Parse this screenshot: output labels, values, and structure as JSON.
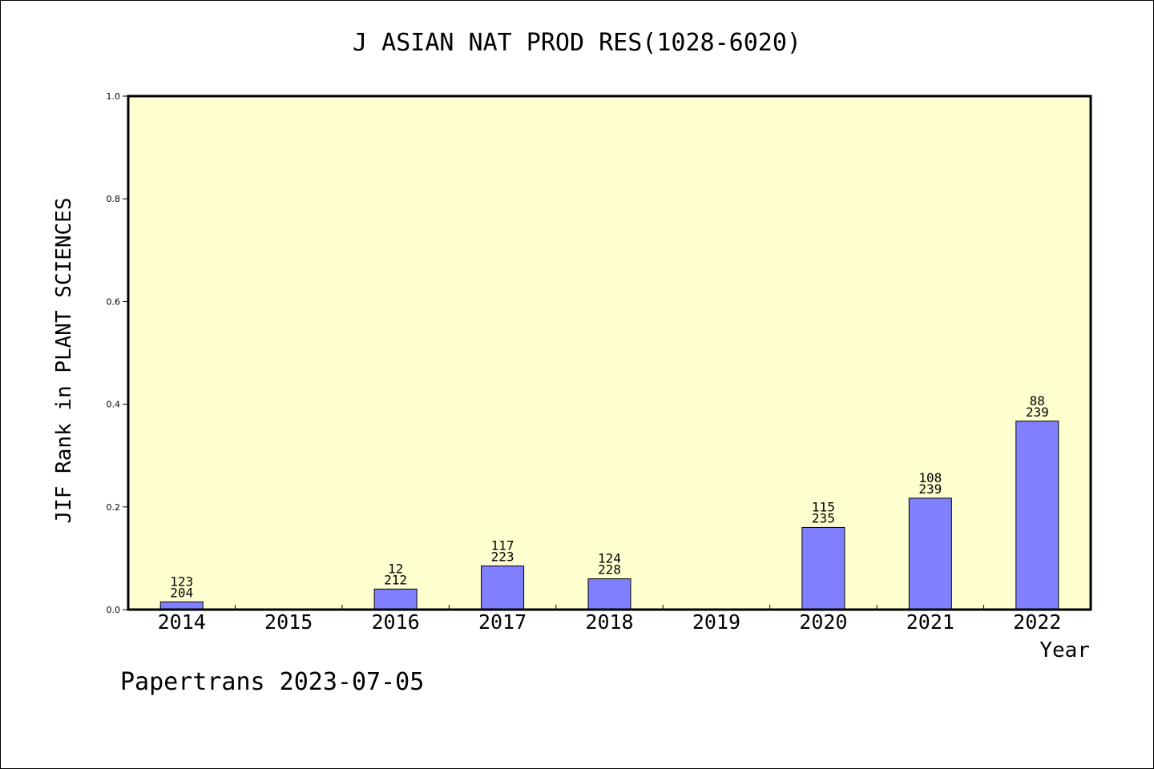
{
  "title": "J ASIAN NAT PROD RES(1028-6020)",
  "footer": "Papertrans 2023-07-05",
  "colors": {
    "plot_bg": "#FFFFD0",
    "bar": "#8080FF",
    "frame": "#000000"
  },
  "chart_data": {
    "type": "bar",
    "title": "J ASIAN NAT PROD RES(1028-6020)",
    "xlabel": "Year",
    "ylabel": "JIF Rank in PLANT SCIENCES",
    "ylim": [
      0,
      1.0
    ],
    "yticks": [
      "0.0",
      "0.2",
      "0.4",
      "0.6",
      "0.8",
      "1.0"
    ],
    "grid": false,
    "categories": [
      "2014",
      "2015",
      "2016",
      "2017",
      "2018",
      "2019",
      "2020",
      "2021",
      "2022"
    ],
    "values": [
      0.015,
      null,
      0.04,
      0.085,
      0.06,
      null,
      0.16,
      0.217,
      0.367
    ],
    "rank_labels": [
      {
        "rank": "123",
        "total": "204"
      },
      null,
      {
        "rank": "12",
        "total": "212"
      },
      {
        "rank": "117",
        "total": "223"
      },
      {
        "rank": "124",
        "total": "228"
      },
      null,
      {
        "rank": "115",
        "total": "235"
      },
      {
        "rank": "108",
        "total": "239"
      },
      {
        "rank": "88",
        "total": "239"
      }
    ]
  }
}
